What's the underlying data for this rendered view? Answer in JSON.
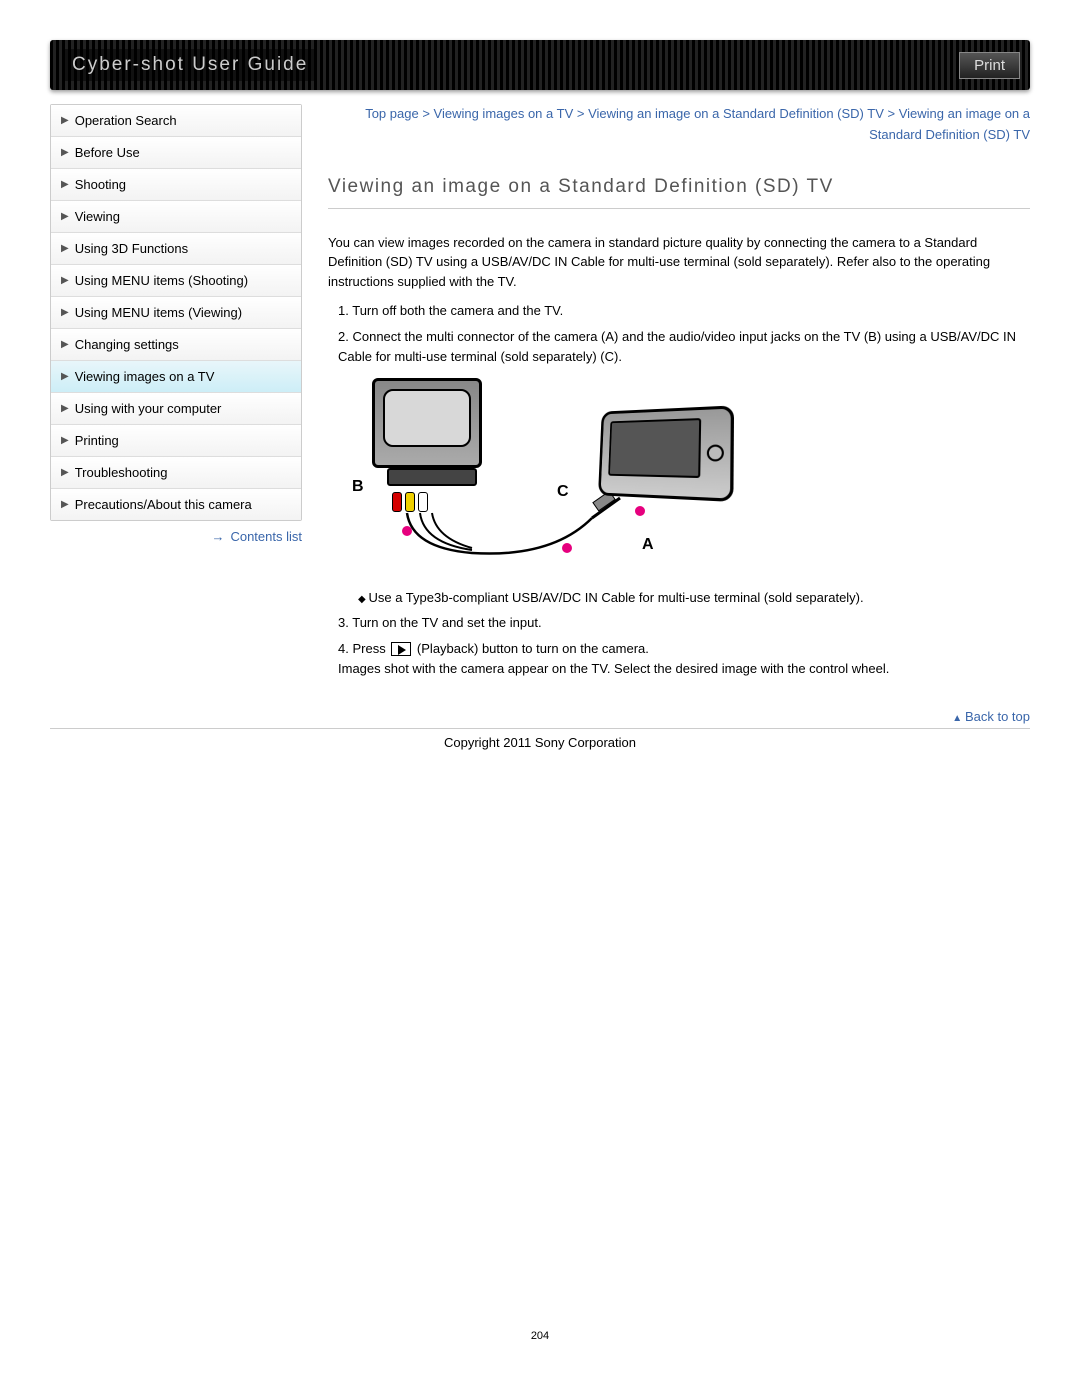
{
  "header": {
    "title": "Cyber-shot User Guide",
    "print": "Print"
  },
  "sidebar": {
    "items": [
      {
        "label": "Operation Search",
        "active": false
      },
      {
        "label": "Before Use",
        "active": false
      },
      {
        "label": "Shooting",
        "active": false
      },
      {
        "label": "Viewing",
        "active": false
      },
      {
        "label": "Using 3D Functions",
        "active": false
      },
      {
        "label": "Using MENU items (Shooting)",
        "active": false
      },
      {
        "label": "Using MENU items (Viewing)",
        "active": false
      },
      {
        "label": "Changing settings",
        "active": false
      },
      {
        "label": "Viewing images on a TV",
        "active": true
      },
      {
        "label": "Using with your computer",
        "active": false
      },
      {
        "label": "Printing",
        "active": false
      },
      {
        "label": "Troubleshooting",
        "active": false
      },
      {
        "label": "Precautions/About this camera",
        "active": false
      }
    ],
    "contents_link": "Contents list"
  },
  "breadcrumb": {
    "parts": [
      "Top page",
      "Viewing images on a TV",
      "Viewing an image on a Standard Definition (SD) TV",
      "Viewing an image on a Standard Definition (SD) TV"
    ]
  },
  "content": {
    "title": "Viewing an image on a Standard Definition (SD) TV",
    "intro": "You can view images recorded on the camera in standard picture quality by connecting the camera to a Standard Definition (SD) TV using a USB/AV/DC IN Cable for multi-use terminal (sold separately). Refer also to the operating instructions supplied with the TV.",
    "step1": "Turn off both the camera and the TV.",
    "step2": "Connect the multi connector of the camera (A) and the audio/video input jacks on the TV (B) using a USB/AV/DC IN Cable for multi-use terminal (sold separately) (C).",
    "sub_bullet": "Use a Type3b-compliant USB/AV/DC IN Cable for multi-use terminal (sold separately).",
    "step3": "Turn on the TV and set the input.",
    "step4_pre": "Press ",
    "step4_post": " (Playback) button to turn on the camera.",
    "step4_detail": "Images shot with the camera appear on the TV. Select the desired image with the control wheel.",
    "diagram": {
      "labels": {
        "A": "A",
        "B": "B",
        "C": "C"
      },
      "jack_colors": [
        "#d40000",
        "#f0d000",
        "#ffffff"
      ],
      "accent_color": "#e6007e"
    }
  },
  "footer": {
    "back_to_top": "Back to top",
    "copyright": "Copyright 2011 Sony Corporation",
    "page_number": "204"
  }
}
